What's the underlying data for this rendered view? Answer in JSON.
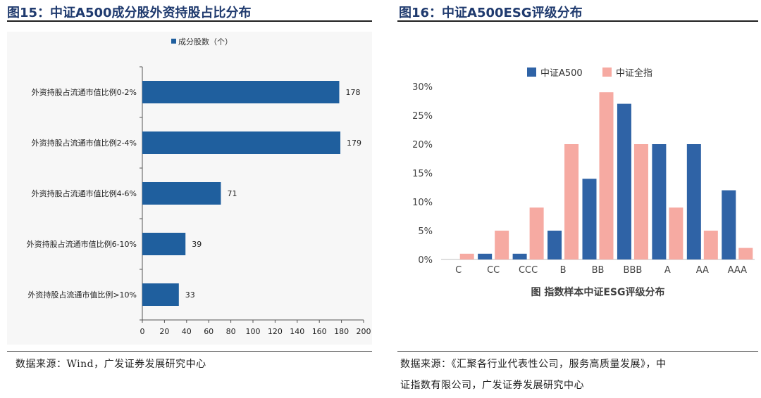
{
  "left": {
    "fig_title": "图15：中证A500成分股外资持股占比分布",
    "source": "数据来源：Wind，广发证券发展研究中心"
  },
  "right": {
    "fig_title": "图16：中证A500ESG评级分布",
    "source_line1": "数据来源：《汇聚各行业代表性公司，服务高质量发展》，中",
    "source_line2": "证指数有限公司，广发证券发展研究中心"
  },
  "colors": {
    "left_bar": "#1f5f9e",
    "a500": "#2f63a6",
    "all": "#f6aaa2",
    "title": "#1f3a6e"
  },
  "chart_data": [
    {
      "type": "bar",
      "orientation": "horizontal",
      "title": "",
      "legend": [
        "成分股数（个）"
      ],
      "legend_position": "top",
      "categories": [
        "外资持股占流通市值比例0-2%",
        "外资持股占流通市值比例2-4%",
        "外资持股占流通市值比例4-6%",
        "外资持股占流通市值比例6-10%",
        "外资持股占流通市值比例>10%"
      ],
      "values": [
        178,
        179,
        71,
        39,
        33
      ],
      "xlim": [
        0,
        200
      ],
      "xticks": [
        0,
        20,
        40,
        60,
        80,
        100,
        120,
        140,
        160,
        180,
        200
      ],
      "grid": false
    },
    {
      "type": "bar",
      "orientation": "vertical",
      "title": "图 指数样本中证ESG评级分布",
      "categories": [
        "C",
        "CC",
        "CCC",
        "B",
        "BB",
        "BBB",
        "A",
        "AA",
        "AAA"
      ],
      "series": [
        {
          "name": "中证A500",
          "values": [
            0,
            1,
            1,
            5,
            14,
            27,
            20,
            20,
            12
          ]
        },
        {
          "name": "中证全指",
          "values": [
            1,
            5,
            9,
            20,
            29,
            20,
            9,
            5,
            2
          ]
        }
      ],
      "ylim": [
        0,
        30
      ],
      "yticks": [
        "0%",
        "5%",
        "10%",
        "15%",
        "20%",
        "25%",
        "30%"
      ],
      "legend_position": "top",
      "grid": false
    }
  ]
}
